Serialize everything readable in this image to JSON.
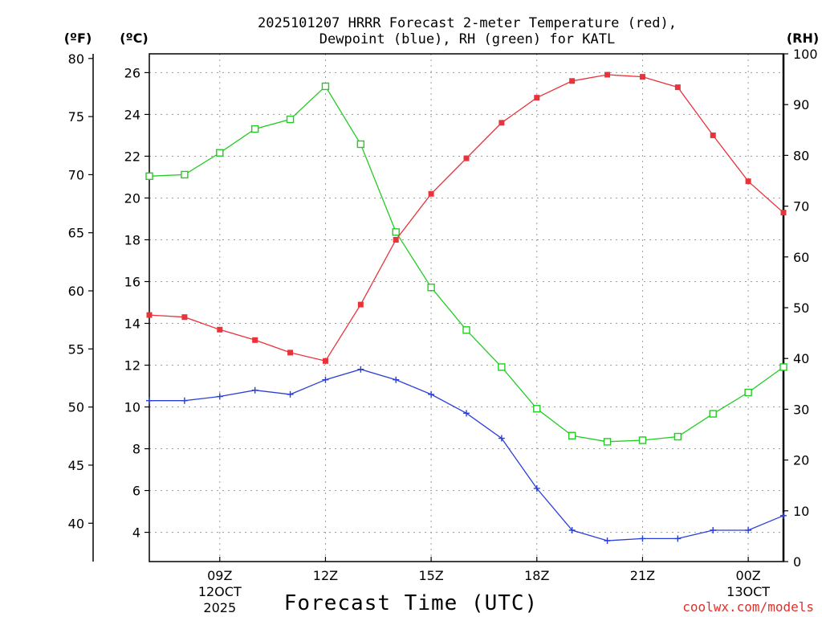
{
  "title": {
    "line1": "2025101207 HRRR Forecast 2-meter Temperature (red),",
    "line2": "Dewpoint (blue), RH (green) for KATL"
  },
  "axis_units": {
    "fahrenheit": "(ºF)",
    "celsius": "(ºC)",
    "rh": "(RH)"
  },
  "xlabel": "Forecast Time (UTC)",
  "credit": "coolwx.com/models",
  "colors": {
    "temperature": "#e8333a",
    "dewpoint": "#2a3fd8",
    "rh": "#22cc22",
    "grid": "#9a9a9a",
    "credit": "#e0302a"
  },
  "chart_data": {
    "type": "line",
    "x_hours": [
      7,
      8,
      9,
      10,
      11,
      12,
      13,
      14,
      15,
      16,
      17,
      18,
      19,
      20,
      21,
      22,
      23,
      24,
      25
    ],
    "xlim": [
      7,
      25
    ],
    "x_ticks": [
      {
        "hour": 9,
        "label": "09Z",
        "sub1": "12OCT",
        "sub2": "2025"
      },
      {
        "hour": 12,
        "label": "12Z",
        "sub1": "",
        "sub2": ""
      },
      {
        "hour": 15,
        "label": "15Z",
        "sub1": "",
        "sub2": ""
      },
      {
        "hour": 18,
        "label": "18Z",
        "sub1": "",
        "sub2": ""
      },
      {
        "hour": 21,
        "label": "21Z",
        "sub1": "",
        "sub2": ""
      },
      {
        "hour": 24,
        "label": "00Z",
        "sub1": "13OCT",
        "sub2": ""
      }
    ],
    "celsius_axis": {
      "lim": [
        2.6,
        26.9
      ],
      "ticks": [
        "4",
        "6",
        "8",
        "10",
        "12",
        "14",
        "16",
        "18",
        "20",
        "22",
        "24",
        "26"
      ]
    },
    "fahrenheit_axis": {
      "lim": [
        36.7,
        80.4
      ],
      "ticks": [
        "40",
        "45",
        "50",
        "55",
        "60",
        "65",
        "70",
        "75",
        "80"
      ]
    },
    "rh_axis": {
      "lim": [
        0,
        100
      ],
      "ticks": [
        "0",
        "10",
        "20",
        "30",
        "40",
        "50",
        "60",
        "70",
        "80",
        "90",
        "100"
      ]
    },
    "series": [
      {
        "name": "Temperature",
        "units": "C",
        "marker": "filled-square",
        "values": [
          14.4,
          14.3,
          13.7,
          13.2,
          12.6,
          12.2,
          14.9,
          18.0,
          20.2,
          21.9,
          23.6,
          24.8,
          25.6,
          25.9,
          25.8,
          25.3,
          23.0,
          20.8,
          19.3
        ]
      },
      {
        "name": "Dewpoint",
        "units": "C",
        "marker": "plus",
        "values": [
          10.3,
          10.3,
          10.5,
          10.8,
          10.6,
          11.3,
          11.8,
          11.3,
          10.6,
          9.7,
          8.5,
          6.1,
          4.1,
          3.6,
          3.7,
          3.7,
          4.1,
          4.1,
          4.8
        ]
      },
      {
        "name": "RH",
        "units": "%",
        "marker": "open-square",
        "values": [
          75.9,
          76.2,
          80.5,
          85.2,
          87.1,
          93.6,
          82.2,
          64.9,
          54.0,
          45.6,
          38.3,
          30.1,
          24.8,
          23.6,
          23.9,
          24.6,
          29.1,
          33.3,
          38.3
        ]
      }
    ]
  }
}
